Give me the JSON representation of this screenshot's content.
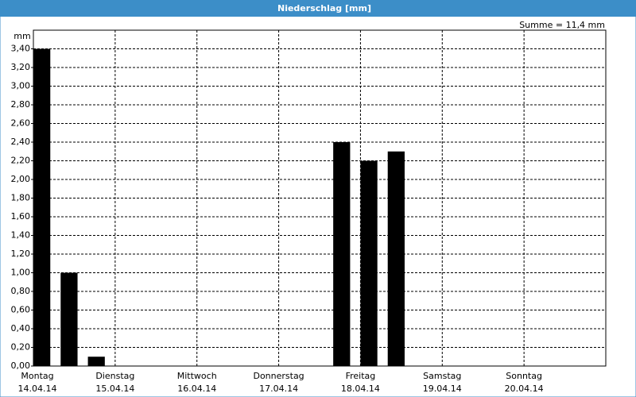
{
  "chart_data": {
    "type": "bar",
    "title": "Niederschlag [mm]",
    "y_label": "mm",
    "annotation": "Summe = 11,4 mm",
    "categories": [
      "Montag",
      null,
      null,
      "Dienstag",
      null,
      null,
      "Mittwoch",
      null,
      null,
      "Donnerstag",
      null,
      null,
      "Freitag",
      null,
      null,
      "Samstag",
      null,
      null,
      "Sonntag",
      null,
      null
    ],
    "category_dates": [
      "14.04.14",
      null,
      null,
      "15.04.14",
      null,
      null,
      "16.04.14",
      null,
      null,
      "17.04.14",
      null,
      null,
      "18.04.14",
      null,
      null,
      "19.04.14",
      null,
      null,
      "20.04.14",
      null,
      null
    ],
    "values": [
      3.4,
      1.0,
      0.1,
      0,
      0,
      0,
      0,
      0,
      0,
      0,
      0,
      2.4,
      2.2,
      2.3,
      0,
      0,
      0,
      0,
      0,
      0,
      0
    ],
    "color": "#000000",
    "ylim": [
      0,
      3.6
    ],
    "yticks": [
      {
        "value": 0,
        "label": "0,00"
      },
      {
        "value": 0.2,
        "label": "0,20"
      },
      {
        "value": 0.4,
        "label": "0,40"
      },
      {
        "value": 0.6,
        "label": "0,60"
      },
      {
        "value": 0.8,
        "label": "0,80"
      },
      {
        "value": 1.0,
        "label": "1,00"
      },
      {
        "value": 1.2,
        "label": "1,20"
      },
      {
        "value": 1.4,
        "label": "1,40"
      },
      {
        "value": 1.6,
        "label": "1,60"
      },
      {
        "value": 1.8,
        "label": "1,80"
      },
      {
        "value": 2.0,
        "label": "2,00"
      },
      {
        "value": 2.2,
        "label": "2,20"
      },
      {
        "value": 2.4,
        "label": "2,40"
      },
      {
        "value": 2.6,
        "label": "2,60"
      },
      {
        "value": 2.8,
        "label": "2,80"
      },
      {
        "value": 3.0,
        "label": "3,00"
      },
      {
        "value": 3.2,
        "label": "3,20"
      },
      {
        "value": 3.4,
        "label": "3,40"
      }
    ],
    "grid": true
  }
}
